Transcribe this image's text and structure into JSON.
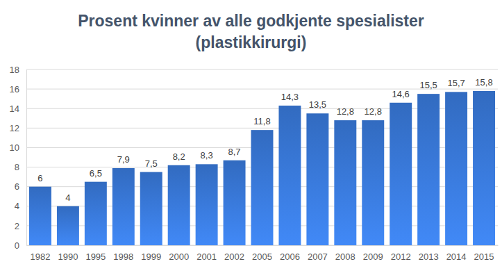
{
  "chart_data": {
    "type": "bar",
    "title": "Prosent kvinner av alle godkjente spesialister (plastikkirurgi)",
    "categories": [
      "1982",
      "1990",
      "1995",
      "1998",
      "1999",
      "2000",
      "2001",
      "2002",
      "2005",
      "2006",
      "2007",
      "2008",
      "2009",
      "2012",
      "2013",
      "2014",
      "2015"
    ],
    "values": [
      6,
      4,
      6.5,
      7.9,
      7.5,
      8.2,
      8.3,
      8.7,
      11.8,
      14.3,
      13.5,
      12.8,
      12.8,
      14.6,
      15.5,
      15.7,
      15.8
    ],
    "value_labels": [
      "6",
      "4",
      "6,5",
      "7,9",
      "7,5",
      "8,2",
      "8,3",
      "8,7",
      "11,8",
      "14,3",
      "13,5",
      "12,8",
      "12,8",
      "14,6",
      "15,5",
      "15,7",
      "15,8"
    ],
    "color": "#3775d2",
    "ylim": [
      0,
      18
    ],
    "yticks": [
      0,
      2,
      4,
      6,
      8,
      10,
      12,
      14,
      16,
      18
    ],
    "grid": true,
    "data_labels": true
  }
}
